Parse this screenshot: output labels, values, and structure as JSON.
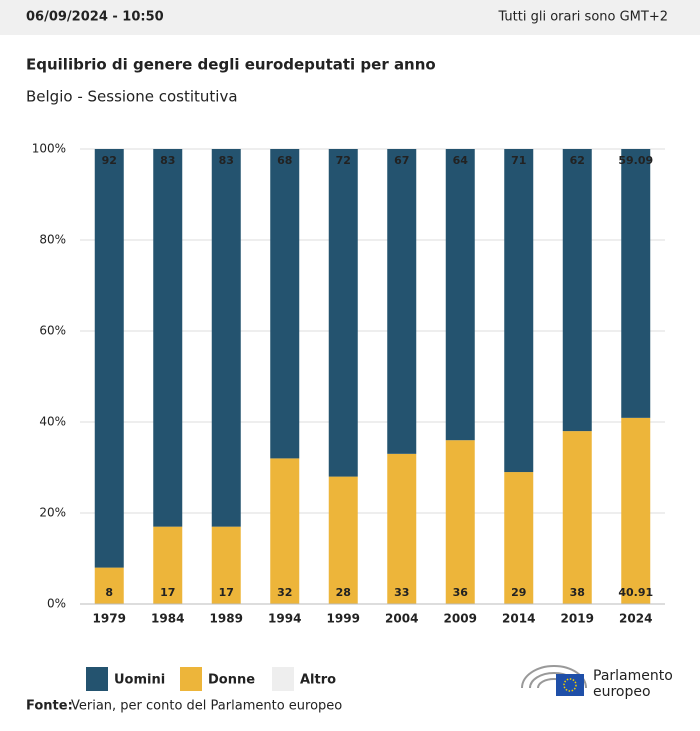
{
  "header": {
    "datetime": "06/09/2024 - 10:50",
    "timezone": "Tutti gli orari sono GMT+2"
  },
  "chart_data": {
    "type": "stacked-bar",
    "title": "Equilibrio di genere degli eurodeputati per anno",
    "subtitle": "Belgio - Sessione costitutiva",
    "categories": [
      "1979",
      "1984",
      "1989",
      "1994",
      "1999",
      "2004",
      "2009",
      "2014",
      "2019",
      "2024"
    ],
    "series": [
      {
        "name": "Uomini",
        "color": "#24536f",
        "values": [
          92,
          83,
          83,
          68,
          72,
          67,
          64,
          71,
          62,
          59.09
        ]
      },
      {
        "name": "Donne",
        "color": "#edb53a",
        "values": [
          8,
          17,
          17,
          32,
          28,
          33,
          36,
          29,
          38,
          40.91
        ]
      },
      {
        "name": "Altro",
        "color": "#eeeeee",
        "values": [
          0,
          0,
          0,
          0,
          0,
          0,
          0,
          0,
          0,
          0
        ]
      }
    ],
    "ylim": [
      0,
      100
    ],
    "yticks": [
      {
        "value": 0,
        "label": "0%"
      },
      {
        "value": 20,
        "label": "20%"
      },
      {
        "value": 40,
        "label": "40%"
      },
      {
        "value": 60,
        "label": "60%"
      },
      {
        "value": 80,
        "label": "80%"
      },
      {
        "value": 100,
        "label": "100%"
      }
    ],
    "grid": true
  },
  "source": {
    "label": "Fonte:",
    "text": "Verian, per conto del Parlamento europeo"
  },
  "logo": {
    "line1": "Parlamento",
    "line2": "europeo"
  }
}
